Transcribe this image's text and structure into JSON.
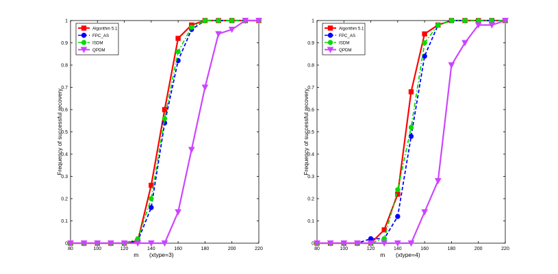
{
  "chart_data": [
    {
      "type": "line",
      "xlabel": "m",
      "xlabel_suffix": "(xtype=3)",
      "ylabel": "Frequency of successful recovery",
      "xlim": [
        80,
        220
      ],
      "ylim": [
        0,
        1
      ],
      "x_ticks": [
        80,
        100,
        120,
        140,
        160,
        180,
        200,
        220
      ],
      "y_ticks": [
        0,
        0.1,
        0.2,
        0.3,
        0.4,
        0.5,
        0.6,
        0.7,
        0.8,
        0.9,
        1
      ],
      "legend_position": "top-left",
      "series": [
        {
          "name": "Algorithm 5.1",
          "color": "#ff0000",
          "dash": "solid",
          "marker": "square",
          "x": [
            80,
            90,
            100,
            110,
            120,
            130,
            140,
            150,
            160,
            170,
            180,
            190,
            200,
            210,
            220
          ],
          "y": [
            0,
            0,
            0,
            0,
            0,
            0.01,
            0.26,
            0.6,
            0.92,
            0.98,
            1,
            1,
            1,
            1,
            1
          ]
        },
        {
          "name": "FPC_AS",
          "color": "#0000ff",
          "dash": "dashed",
          "marker": "circle",
          "x": [
            80,
            90,
            100,
            110,
            120,
            130,
            140,
            150,
            160,
            170,
            180,
            190,
            200,
            210,
            220
          ],
          "y": [
            0,
            0,
            0,
            0,
            0,
            0.01,
            0.16,
            0.54,
            0.82,
            0.96,
            1,
            1,
            1,
            1,
            1
          ]
        },
        {
          "name": "ISDM",
          "color": "#00dd00",
          "dash": "dashdot",
          "marker": "circle",
          "x": [
            80,
            90,
            100,
            110,
            120,
            130,
            140,
            150,
            160,
            170,
            180,
            190,
            200,
            210,
            220
          ],
          "y": [
            0,
            0,
            0,
            0,
            0,
            0.02,
            0.2,
            0.56,
            0.86,
            0.97,
            1,
            1,
            1,
            1,
            1
          ]
        },
        {
          "name": "QPDM",
          "color": "#cc44ff",
          "dash": "solid",
          "marker": "triangle-down",
          "x": [
            80,
            90,
            100,
            110,
            120,
            130,
            140,
            150,
            160,
            170,
            180,
            190,
            200,
            210,
            220
          ],
          "y": [
            0,
            0,
            0,
            0,
            0,
            0,
            0,
            0,
            0.14,
            0.42,
            0.7,
            0.94,
            0.96,
            1,
            1
          ]
        }
      ]
    },
    {
      "type": "line",
      "xlabel": "m",
      "xlabel_suffix": "(xtype=4)",
      "ylabel": "Frequency of successful recovery",
      "xlim": [
        80,
        220
      ],
      "ylim": [
        0,
        1
      ],
      "x_ticks": [
        80,
        100,
        120,
        140,
        160,
        180,
        200,
        220
      ],
      "y_ticks": [
        0,
        0.1,
        0.2,
        0.3,
        0.4,
        0.5,
        0.6,
        0.7,
        0.8,
        0.9,
        1
      ],
      "legend_position": "top-left",
      "series": [
        {
          "name": "Algorithm 5.1",
          "color": "#ff0000",
          "dash": "solid",
          "marker": "square",
          "x": [
            80,
            90,
            100,
            110,
            120,
            130,
            140,
            150,
            160,
            170,
            180,
            190,
            200,
            210,
            220
          ],
          "y": [
            0,
            0,
            0,
            0,
            0,
            0.06,
            0.22,
            0.68,
            0.94,
            0.98,
            1,
            1,
            1,
            1,
            1
          ]
        },
        {
          "name": "FPC_AS",
          "color": "#0000ff",
          "dash": "dashed",
          "marker": "circle",
          "x": [
            80,
            90,
            100,
            110,
            120,
            130,
            140,
            150,
            160,
            170,
            180,
            190,
            200,
            210,
            220
          ],
          "y": [
            0,
            0,
            0,
            0,
            0.02,
            0.02,
            0.12,
            0.48,
            0.84,
            0.98,
            1,
            1,
            1,
            1,
            1
          ]
        },
        {
          "name": "ISDM",
          "color": "#00dd00",
          "dash": "dashdot",
          "marker": "circle",
          "x": [
            80,
            90,
            100,
            110,
            120,
            130,
            140,
            150,
            160,
            170,
            180,
            190,
            200,
            210,
            220
          ],
          "y": [
            0,
            0,
            0,
            0,
            0,
            0.02,
            0.24,
            0.52,
            0.9,
            0.98,
            1,
            1,
            1,
            1,
            1
          ]
        },
        {
          "name": "QPDM",
          "color": "#cc44ff",
          "dash": "solid",
          "marker": "triangle-down",
          "x": [
            80,
            90,
            100,
            110,
            120,
            130,
            140,
            150,
            160,
            170,
            180,
            190,
            200,
            210,
            220
          ],
          "y": [
            0,
            0,
            0,
            0,
            0,
            0,
            0,
            0,
            0.14,
            0.28,
            0.8,
            0.9,
            0.98,
            0.98,
            1
          ]
        }
      ]
    }
  ]
}
